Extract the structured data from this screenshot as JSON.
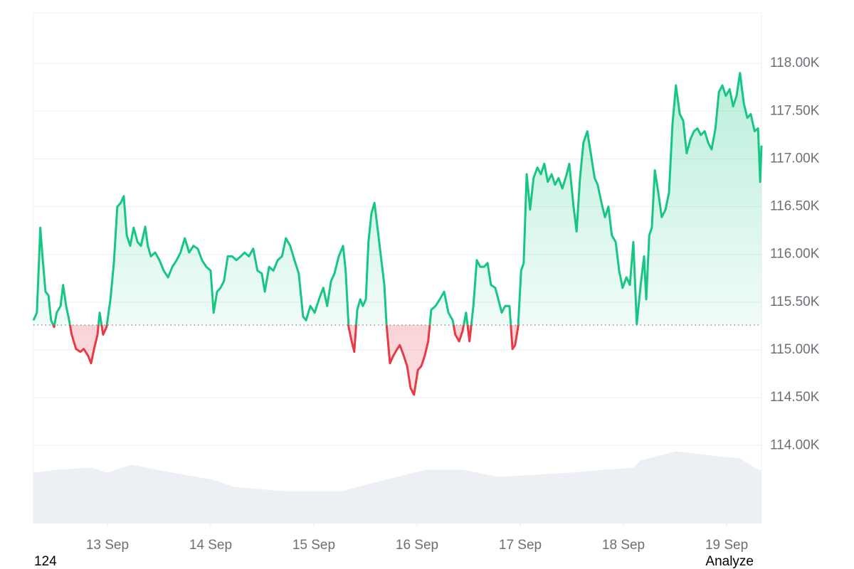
{
  "chart_data": {
    "type": "line",
    "x": [
      -17.2,
      -16.4,
      -15.6,
      -15.1,
      -14.4,
      -13.7,
      -13.1,
      -12.4,
      -11.8,
      -10.9,
      -10.3,
      -9.6,
      -8.9,
      -8.3,
      -7.3,
      -6.3,
      -5.5,
      -4.5,
      -3.8,
      -3.1,
      -2.3,
      -1.8,
      -1.0,
      -0.2,
      0.7,
      1.5,
      2.3,
      3.1,
      3.8,
      4.5,
      5.3,
      6.1,
      7.0,
      7.8,
      8.8,
      9.4,
      10.1,
      11.1,
      12.1,
      13.1,
      14.1,
      15.1,
      16.1,
      17.0,
      18.0,
      19.0,
      20.0,
      21.0,
      22.0,
      23.0,
      24.0,
      24.7,
      25.5,
      26.3,
      27.1,
      28.0,
      29.0,
      30.0,
      31.0,
      31.9,
      32.9,
      33.9,
      34.9,
      35.9,
      36.6,
      37.6,
      38.6,
      39.6,
      40.6,
      41.5,
      42.5,
      43.5,
      44.5,
      45.5,
      46.2,
      47.2,
      48.2,
      49.2,
      50.2,
      51.1,
      52.0,
      52.8,
      53.8,
      54.8,
      55.4,
      56.1,
      56.8,
      57.4,
      58.1,
      58.8,
      59.4,
      60.1,
      60.7,
      61.4,
      62.1,
      62.7,
      63.6,
      64.4,
      64.9,
      65.7,
      66.5,
      67.4,
      68.0,
      68.9,
      69.7,
      70.5,
      71.3,
      72.2,
      73.0,
      73.8,
      74.6,
      75.3,
      76.3,
      77.3,
      78.3,
      79.3,
      80.3,
      80.9,
      81.8,
      82.6,
      83.4,
      84.2,
      85.1,
      85.9,
      86.7,
      87.6,
      88.4,
      89.2,
      90.2,
      90.9,
      91.7,
      92.5,
      93.5,
      94.2,
      94.8,
      95.5,
      96.2,
      96.8,
      97.5,
      98.3,
      99.1,
      100.0,
      100.8,
      101.6,
      102.4,
      103.3,
      104.1,
      104.9,
      105.8,
      106.8,
      107.4,
      108.4,
      109.1,
      109.9,
      110.7,
      111.6,
      112.4,
      113.3,
      114.0,
      114.9,
      115.7,
      116.5,
      117.3,
      118.2,
      119.0,
      119.8,
      120.7,
      121.5,
      122.3,
      123.1,
      124.0,
      124.8,
      125.3,
      126.0,
      126.6,
      127.3,
      128.1,
      128.9,
      129.8,
      130.6,
      131.4,
      132.2,
      133.1,
      133.9,
      134.7,
      135.6,
      136.4,
      137.2,
      138.0,
      138.9,
      139.7,
      140.5,
      141.4,
      142.2,
      143.0,
      143.8,
      144.7,
      145.5,
      146.3,
      147.1,
      148.0,
      148.8,
      149.6,
      150.5,
      151.3,
      151.8,
      152.1
    ],
    "values": [
      115310,
      115390,
      116280,
      115980,
      115610,
      115570,
      115310,
      115240,
      115390,
      115460,
      115680,
      115460,
      115310,
      115160,
      115010,
      114980,
      115010,
      114940,
      114860,
      115010,
      115160,
      115390,
      115160,
      115240,
      115530,
      115910,
      116500,
      116540,
      116610,
      116200,
      116090,
      116280,
      116130,
      116090,
      116290,
      116090,
      115980,
      116020,
      115940,
      115830,
      115760,
      115870,
      115940,
      116020,
      116170,
      116020,
      116090,
      116060,
      115940,
      115870,
      115830,
      115390,
      115610,
      115650,
      115720,
      115980,
      115980,
      115940,
      115980,
      116020,
      115980,
      116060,
      115830,
      115800,
      115610,
      115870,
      115830,
      115940,
      115980,
      116170,
      116090,
      115940,
      115800,
      115350,
      115310,
      115460,
      115390,
      115530,
      115650,
      115460,
      115720,
      115800,
      115980,
      116090,
      115830,
      115240,
      115090,
      114980,
      115420,
      115530,
      115460,
      115530,
      116130,
      116430,
      116540,
      116320,
      115980,
      115680,
      115270,
      114860,
      114940,
      115010,
      115050,
      114940,
      114830,
      114600,
      114530,
      114790,
      114830,
      114940,
      115090,
      115420,
      115460,
      115530,
      115610,
      115390,
      115310,
      115160,
      115090,
      115200,
      115390,
      115090,
      115460,
      115940,
      115870,
      115870,
      115910,
      115680,
      115650,
      115530,
      115390,
      115460,
      115460,
      115010,
      115050,
      115240,
      115830,
      115910,
      116840,
      116470,
      116800,
      116910,
      116840,
      116950,
      116760,
      116840,
      116730,
      116800,
      116690,
      116840,
      116950,
      116500,
      116240,
      116800,
      117170,
      117290,
      117060,
      116800,
      116730,
      116540,
      116390,
      116500,
      116200,
      116130,
      115830,
      115650,
      115760,
      115680,
      116130,
      115270,
      115680,
      115980,
      115530,
      116200,
      116280,
      116880,
      116650,
      116390,
      116470,
      116650,
      117360,
      117770,
      117470,
      117400,
      117060,
      117210,
      117290,
      117320,
      117250,
      117290,
      117170,
      117100,
      117320,
      117700,
      117770,
      117660,
      117730,
      117550,
      117660,
      117900,
      117580,
      117430,
      117470,
      117290,
      117320,
      116760,
      117140
    ],
    "baseline": 115260,
    "up_color": "#16c784",
    "down_color": "#ea3943",
    "volume_x": [
      -17.2,
      -11.8,
      -3.5,
      -0.2,
      5.6,
      11.4,
      24.7,
      29.6,
      41.2,
      54.5,
      64.4,
      74.3,
      82.6,
      90.9,
      99.1,
      107.4,
      115.7,
      122.3,
      124.0,
      132.2,
      140.5,
      147.1,
      150.5,
      152.1
    ],
    "volume_values": [
      49,
      52,
      54,
      49,
      57,
      52,
      42,
      35,
      31,
      31,
      42,
      52,
      52,
      45,
      47,
      49,
      52,
      54,
      61,
      70,
      66,
      63,
      54,
      51
    ],
    "volume_color": "#eceff3",
    "y2lim": [
      0,
      500
    ],
    "xlim": [
      -17.2,
      152.1
    ],
    "xticks": [
      {
        "value": 0,
        "label": "13 Sep"
      },
      {
        "value": 24,
        "label": "14 Sep"
      },
      {
        "value": 48,
        "label": "15 Sep"
      },
      {
        "value": 72,
        "label": "16 Sep"
      },
      {
        "value": 96,
        "label": "17 Sep"
      },
      {
        "value": 120,
        "label": "18 Sep"
      },
      {
        "value": 144,
        "label": "19 Sep"
      }
    ],
    "ylim": [
      113190,
      118530
    ],
    "yticks": [
      {
        "value": 114000,
        "label": "114.00K"
      },
      {
        "value": 114500,
        "label": "114.50K"
      },
      {
        "value": 115000,
        "label": "115.00K"
      },
      {
        "value": 115500,
        "label": "115.50K"
      },
      {
        "value": 116000,
        "label": "116.00K"
      },
      {
        "value": 116500,
        "label": "116.50K"
      },
      {
        "value": 117000,
        "label": "117.00K"
      },
      {
        "value": 117500,
        "label": "117.50K"
      },
      {
        "value": 118000,
        "label": "118.00K"
      }
    ],
    "grid": true
  },
  "footer": {
    "left": "124",
    "right": "Analyze"
  }
}
